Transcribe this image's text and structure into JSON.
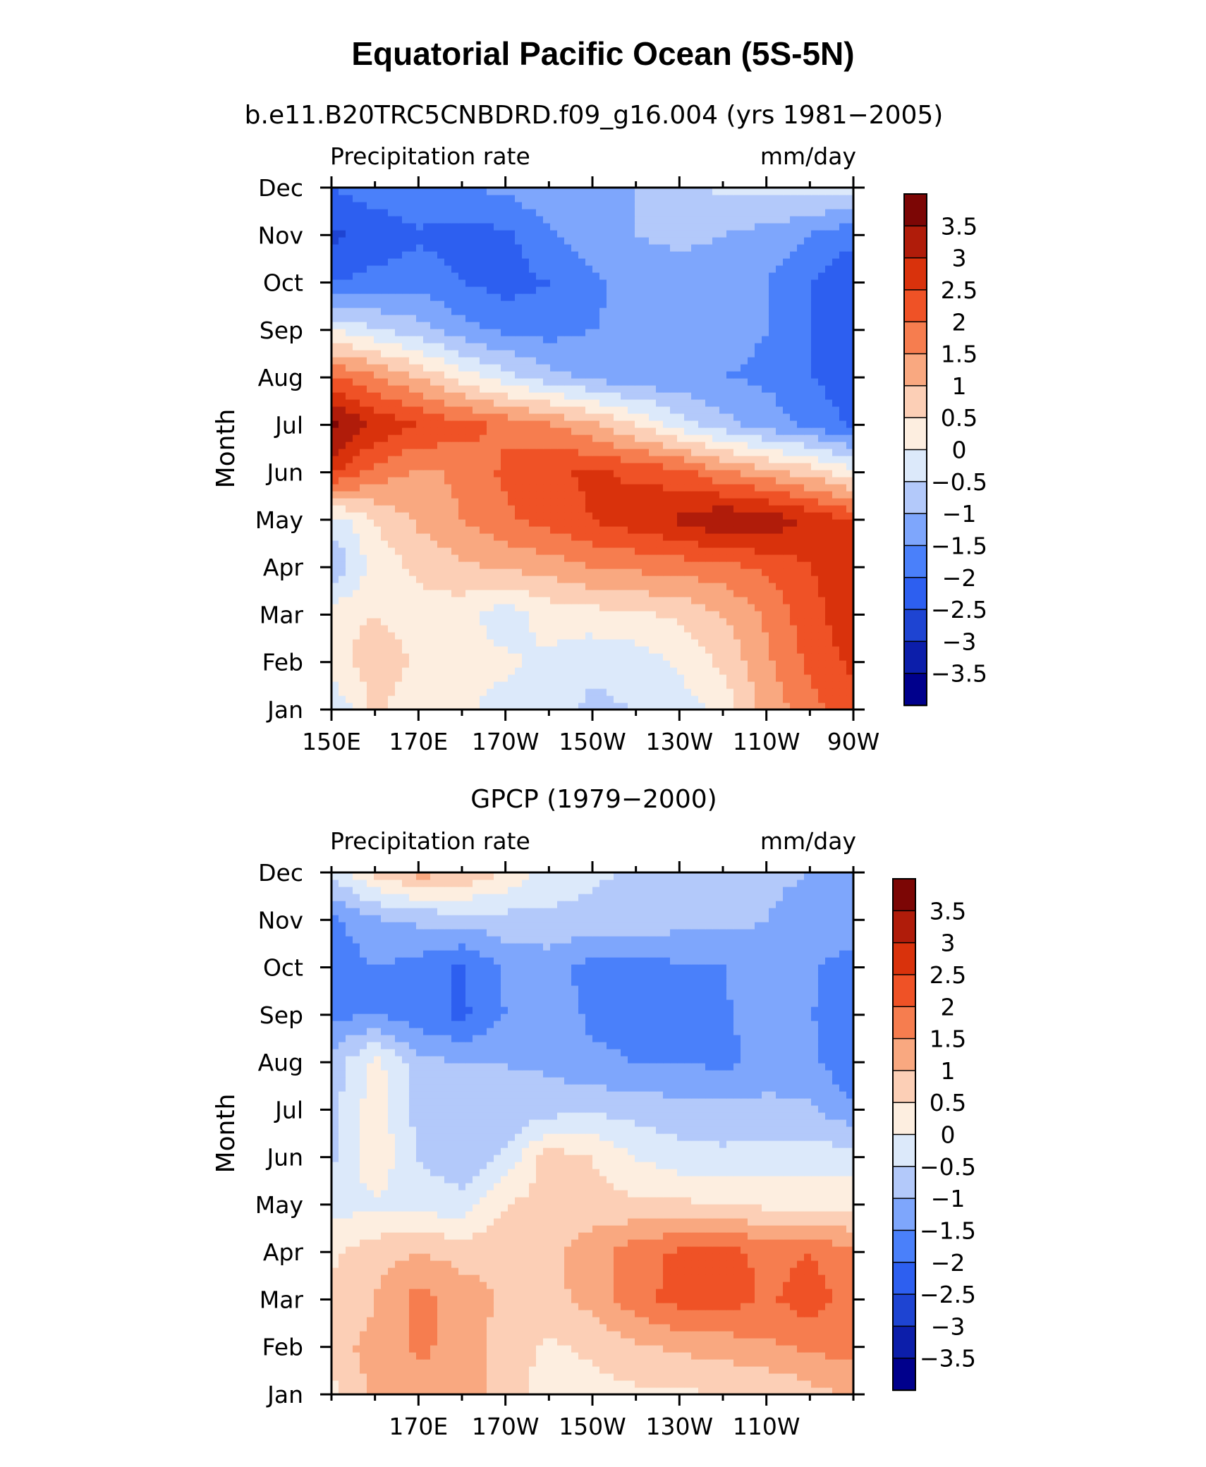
{
  "figure": {
    "title": "Equatorial Pacific Ocean (5S-5N)"
  },
  "panels": [
    {
      "subtitle": "b.e11.B20TRC5CNBDRD.f09_g16.004 (yrs 1981−2005)",
      "left_string": "Precipitation rate",
      "right_string": "mm/day",
      "ylabel": "Month",
      "xticks": [
        "150E",
        "170E",
        "170W",
        "150W",
        "130W",
        "110W",
        "90W"
      ]
    },
    {
      "subtitle": "GPCP (1979−2000)",
      "left_string": "Precipitation rate",
      "right_string": "mm/day",
      "ylabel": "Month",
      "xticks": [
        "170E",
        "170W",
        "150W",
        "130W",
        "110W"
      ]
    }
  ],
  "colors": {
    "palette": [
      "#00008c",
      "#0c1eaa",
      "#1e44d2",
      "#2d5ff0",
      "#4a80fa",
      "#7ea6fc",
      "#b3c9fa",
      "#dce9fa",
      "#fdeee0",
      "#fccfb6",
      "#f9a880",
      "#f67d4f",
      "#ef5226",
      "#d9320c",
      "#b01c0a",
      "#7c0605"
    ],
    "frame": "#000000"
  },
  "chart_data": [
    {
      "type": "heatmap",
      "title": "b.e11.B20TRC5CNBDRD.f09_g16.004 (yrs 1981−2005)",
      "xlabel": "",
      "ylabel": "Month",
      "units": "mm/day",
      "x": [
        150,
        160,
        170,
        180,
        190,
        200,
        210,
        220,
        230,
        240,
        250,
        260,
        270
      ],
      "x_tick_labels": [
        "150E",
        "170E",
        "170W",
        "150W",
        "130W",
        "110W",
        "90W"
      ],
      "y": [
        "Jan",
        "Feb",
        "Mar",
        "Apr",
        "May",
        "Jun",
        "Jul",
        "Aug",
        "Sep",
        "Oct",
        "Nov",
        "Dec"
      ],
      "contour_levels": [
        -3.5,
        -3,
        -2.5,
        -2,
        -1.5,
        -1,
        -0.5,
        0,
        0.5,
        1,
        1.5,
        2,
        2.5,
        3,
        3.5
      ],
      "colorbar_labels": [
        "3.5",
        "3",
        "2.5",
        "2",
        "1.5",
        "1",
        "0.5",
        "0",
        "−0.5",
        "−1",
        "−1.5",
        "−2",
        "−2.5",
        "−3",
        "−3.5"
      ],
      "values": [
        [
          -0.5,
          0.6,
          0.2,
          0.1,
          -0.2,
          -0.3,
          -0.6,
          -0.5,
          -0.3,
          0.2,
          1.2,
          1.8,
          2.3
        ],
        [
          0.3,
          0.8,
          0.4,
          0.2,
          0.1,
          -0.1,
          -0.4,
          -0.3,
          0.1,
          0.6,
          1.4,
          2.1,
          2.6
        ],
        [
          0.3,
          0.5,
          0.3,
          0.2,
          -0.3,
          0.2,
          0.3,
          0.4,
          0.6,
          1.0,
          1.6,
          2.3,
          2.9
        ],
        [
          -1.0,
          0.2,
          0.6,
          0.9,
          1.1,
          1.2,
          1.5,
          1.6,
          1.7,
          1.8,
          2.1,
          2.5,
          2.7
        ],
        [
          -0.3,
          0.5,
          1.1,
          1.5,
          1.9,
          2.2,
          2.5,
          2.8,
          3.1,
          3.5,
          3.4,
          2.9,
          2.5
        ],
        [
          2.6,
          1.8,
          1.4,
          1.6,
          2.1,
          2.4,
          2.6,
          2.4,
          2.2,
          1.6,
          1.2,
          0.8,
          0.2
        ],
        [
          3.7,
          2.9,
          2.5,
          2.2,
          1.9,
          1.6,
          1.1,
          0.5,
          -0.2,
          -0.8,
          -1.2,
          -1.6,
          -2.1
        ],
        [
          2.1,
          1.6,
          1.0,
          0.3,
          -0.3,
          -0.8,
          -1.1,
          -1.3,
          -1.4,
          -1.5,
          -1.6,
          -2.0,
          -2.3
        ],
        [
          0.0,
          -0.4,
          -0.8,
          -1.3,
          -1.6,
          -1.7,
          -1.5,
          -1.4,
          -1.3,
          -1.3,
          -1.5,
          -2.0,
          -2.4
        ],
        [
          -2.0,
          -1.8,
          -1.7,
          -2.0,
          -2.2,
          -2.0,
          -1.6,
          -1.3,
          -1.2,
          -1.2,
          -1.5,
          -2.0,
          -2.4
        ],
        [
          -2.6,
          -2.4,
          -2.1,
          -2.2,
          -2.1,
          -1.6,
          -1.2,
          -1.0,
          -0.9,
          -1.0,
          -1.2,
          -1.5,
          -1.9
        ],
        [
          -2.0,
          -1.7,
          -1.5,
          -1.5,
          -1.4,
          -1.1,
          -1.1,
          -1.0,
          -0.7,
          -0.4,
          -0.3,
          -0.3,
          -0.3
        ]
      ]
    },
    {
      "type": "heatmap",
      "title": "GPCP (1979−2000)",
      "xlabel": "",
      "ylabel": "Month",
      "units": "mm/day",
      "x": [
        150,
        160,
        170,
        180,
        190,
        200,
        210,
        220,
        230,
        240,
        250,
        260,
        270
      ],
      "x_tick_labels": [
        "170E",
        "170W",
        "150W",
        "130W",
        "110W"
      ],
      "y": [
        "Jan",
        "Feb",
        "Mar",
        "Apr",
        "May",
        "Jun",
        "Jul",
        "Aug",
        "Sep",
        "Oct",
        "Nov",
        "Dec"
      ],
      "contour_levels": [
        -3.5,
        -3,
        -2.5,
        -2,
        -1.5,
        -1,
        -0.5,
        0,
        0.5,
        1,
        1.5,
        2,
        2.5,
        3,
        3.5
      ],
      "colorbar_labels": [
        "3.5",
        "3",
        "2.5",
        "2",
        "1.5",
        "1",
        "0.5",
        "0",
        "−0.5",
        "−1",
        "−1.5",
        "−2",
        "−2.5",
        "−3",
        "−3.5"
      ],
      "values": [
        [
          0.3,
          1.2,
          1.3,
          1.4,
          0.6,
          0.4,
          0.3,
          0.4,
          0.4,
          0.5,
          0.5,
          0.8,
          1.1
        ],
        [
          0.9,
          1.1,
          1.6,
          1.3,
          0.7,
          0.4,
          0.6,
          0.9,
          1.1,
          1.2,
          1.4,
          1.6,
          1.7
        ],
        [
          0.6,
          1.0,
          1.7,
          1.3,
          0.9,
          0.8,
          1.2,
          1.8,
          2.2,
          2.3,
          1.9,
          2.3,
          1.7
        ],
        [
          0.4,
          0.8,
          1.0,
          0.8,
          0.8,
          0.9,
          1.3,
          1.8,
          2.1,
          2.3,
          1.8,
          2.0,
          1.6
        ],
        [
          -0.2,
          -0.1,
          -0.2,
          -0.3,
          0.5,
          0.7,
          0.7,
          0.6,
          0.6,
          0.5,
          0.4,
          0.4,
          0.3
        ],
        [
          -0.6,
          0.4,
          -0.5,
          -0.9,
          -0.4,
          0.8,
          0.5,
          0.0,
          -0.3,
          -0.4,
          -0.3,
          -0.3,
          -0.2
        ],
        [
          -0.7,
          0.3,
          -0.7,
          -0.9,
          -0.9,
          -0.7,
          -0.6,
          -0.7,
          -0.8,
          -0.8,
          -0.8,
          -0.9,
          -1.4
        ],
        [
          -0.8,
          0.2,
          -0.8,
          -1.0,
          -1.0,
          -1.1,
          -1.4,
          -1.5,
          -1.5,
          -1.6,
          -1.4,
          -1.4,
          -1.9
        ],
        [
          -1.6,
          -1.5,
          -1.8,
          -2.1,
          -1.5,
          -1.2,
          -1.6,
          -1.7,
          -1.6,
          -1.6,
          -1.2,
          -1.5,
          -1.6
        ],
        [
          -1.9,
          -1.5,
          -1.7,
          -2.1,
          -1.4,
          -1.3,
          -1.7,
          -1.7,
          -1.6,
          -1.5,
          -1.1,
          -1.4,
          -1.8
        ],
        [
          -1.6,
          -1.1,
          -0.9,
          -0.8,
          -0.7,
          -0.6,
          -0.7,
          -0.7,
          -0.8,
          -0.9,
          -1.0,
          -1.2,
          -1.1
        ],
        [
          -0.4,
          0.6,
          1.2,
          1.0,
          0.4,
          -0.2,
          -0.4,
          -0.6,
          -0.7,
          -0.8,
          -0.9,
          -1.0,
          -1.0
        ]
      ]
    }
  ]
}
